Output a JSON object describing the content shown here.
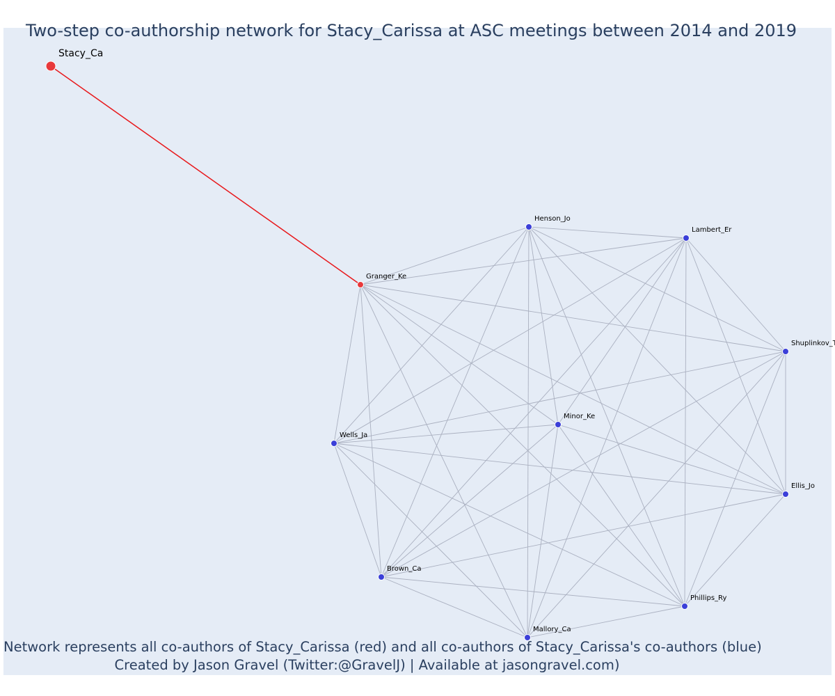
{
  "title": "Two-step co-authorship network for Stacy_Carissa at ASC meetings between 2014 and 2019",
  "footer": {
    "line1": "Network represents all co-authors of Stacy_Carissa (red) and all co-authors of Stacy_Carissa's co-authors (blue)",
    "line2": "Created by Jason Gravel (Twitter:@GravelJ) | Available at jasongravel.com)"
  },
  "colors": {
    "background": "#e5ecf6",
    "red_node": "#e8393b",
    "blue_node": "#3b3fd8",
    "red_edge": "#e8191c",
    "grey_edge": "#aab0c0",
    "title_text": "#2a3f5f",
    "label_text": "#000000"
  },
  "nodes": [
    {
      "id": "Stacy_Ca",
      "label": "Stacy_Ca",
      "group": "red",
      "size": "large"
    },
    {
      "id": "Granger_Ke",
      "label": "Granger_Ke",
      "group": "red",
      "size": "small"
    },
    {
      "id": "Henson_Jo",
      "label": "Henson_Jo",
      "group": "blue",
      "size": "small"
    },
    {
      "id": "Lambert_Er",
      "label": "Lambert_Er",
      "group": "blue",
      "size": "small"
    },
    {
      "id": "Shuplinkov_T",
      "label": "Shuplinkov_T",
      "group": "blue",
      "size": "small"
    },
    {
      "id": "Ellis_Jo",
      "label": "Ellis_Jo",
      "group": "blue",
      "size": "small"
    },
    {
      "id": "Phillips_Ry",
      "label": "Phillips_Ry",
      "group": "blue",
      "size": "small"
    },
    {
      "id": "Mallory_Ca",
      "label": "Mallory_Ca",
      "group": "blue",
      "size": "small"
    },
    {
      "id": "Brown_Ca",
      "label": "Brown_Ca",
      "group": "blue",
      "size": "small"
    },
    {
      "id": "Wells_Ja",
      "label": "Wells_Ja",
      "group": "blue",
      "size": "small"
    },
    {
      "id": "Minor_Ke",
      "label": "Minor_Ke",
      "group": "blue",
      "size": "small"
    }
  ],
  "edges": [
    [
      "Stacy_Ca",
      "Granger_Ke"
    ],
    [
      "Granger_Ke",
      "Henson_Jo"
    ],
    [
      "Granger_Ke",
      "Lambert_Er"
    ],
    [
      "Granger_Ke",
      "Shuplinkov_T"
    ],
    [
      "Granger_Ke",
      "Ellis_Jo"
    ],
    [
      "Granger_Ke",
      "Phillips_Ry"
    ],
    [
      "Granger_Ke",
      "Mallory_Ca"
    ],
    [
      "Granger_Ke",
      "Brown_Ca"
    ],
    [
      "Granger_Ke",
      "Wells_Ja"
    ],
    [
      "Granger_Ke",
      "Minor_Ke"
    ],
    [
      "Henson_Jo",
      "Lambert_Er"
    ],
    [
      "Henson_Jo",
      "Shuplinkov_T"
    ],
    [
      "Henson_Jo",
      "Ellis_Jo"
    ],
    [
      "Henson_Jo",
      "Phillips_Ry"
    ],
    [
      "Henson_Jo",
      "Mallory_Ca"
    ],
    [
      "Henson_Jo",
      "Brown_Ca"
    ],
    [
      "Henson_Jo",
      "Wells_Ja"
    ],
    [
      "Henson_Jo",
      "Minor_Ke"
    ],
    [
      "Lambert_Er",
      "Shuplinkov_T"
    ],
    [
      "Lambert_Er",
      "Ellis_Jo"
    ],
    [
      "Lambert_Er",
      "Phillips_Ry"
    ],
    [
      "Lambert_Er",
      "Mallory_Ca"
    ],
    [
      "Lambert_Er",
      "Brown_Ca"
    ],
    [
      "Lambert_Er",
      "Wells_Ja"
    ],
    [
      "Lambert_Er",
      "Minor_Ke"
    ],
    [
      "Shuplinkov_T",
      "Ellis_Jo"
    ],
    [
      "Shuplinkov_T",
      "Phillips_Ry"
    ],
    [
      "Shuplinkov_T",
      "Mallory_Ca"
    ],
    [
      "Shuplinkov_T",
      "Brown_Ca"
    ],
    [
      "Shuplinkov_T",
      "Wells_Ja"
    ],
    [
      "Ellis_Jo",
      "Phillips_Ry"
    ],
    [
      "Ellis_Jo",
      "Brown_Ca"
    ],
    [
      "Ellis_Jo",
      "Wells_Ja"
    ],
    [
      "Ellis_Jo",
      "Minor_Ke"
    ],
    [
      "Phillips_Ry",
      "Mallory_Ca"
    ],
    [
      "Phillips_Ry",
      "Brown_Ca"
    ],
    [
      "Phillips_Ry",
      "Wells_Ja"
    ],
    [
      "Phillips_Ry",
      "Minor_Ke"
    ],
    [
      "Mallory_Ca",
      "Brown_Ca"
    ],
    [
      "Mallory_Ca",
      "Wells_Ja"
    ],
    [
      "Mallory_Ca",
      "Minor_Ke"
    ],
    [
      "Brown_Ca",
      "Wells_Ja"
    ],
    [
      "Brown_Ca",
      "Minor_Ke"
    ],
    [
      "Wells_Ja",
      "Minor_Ke"
    ]
  ]
}
